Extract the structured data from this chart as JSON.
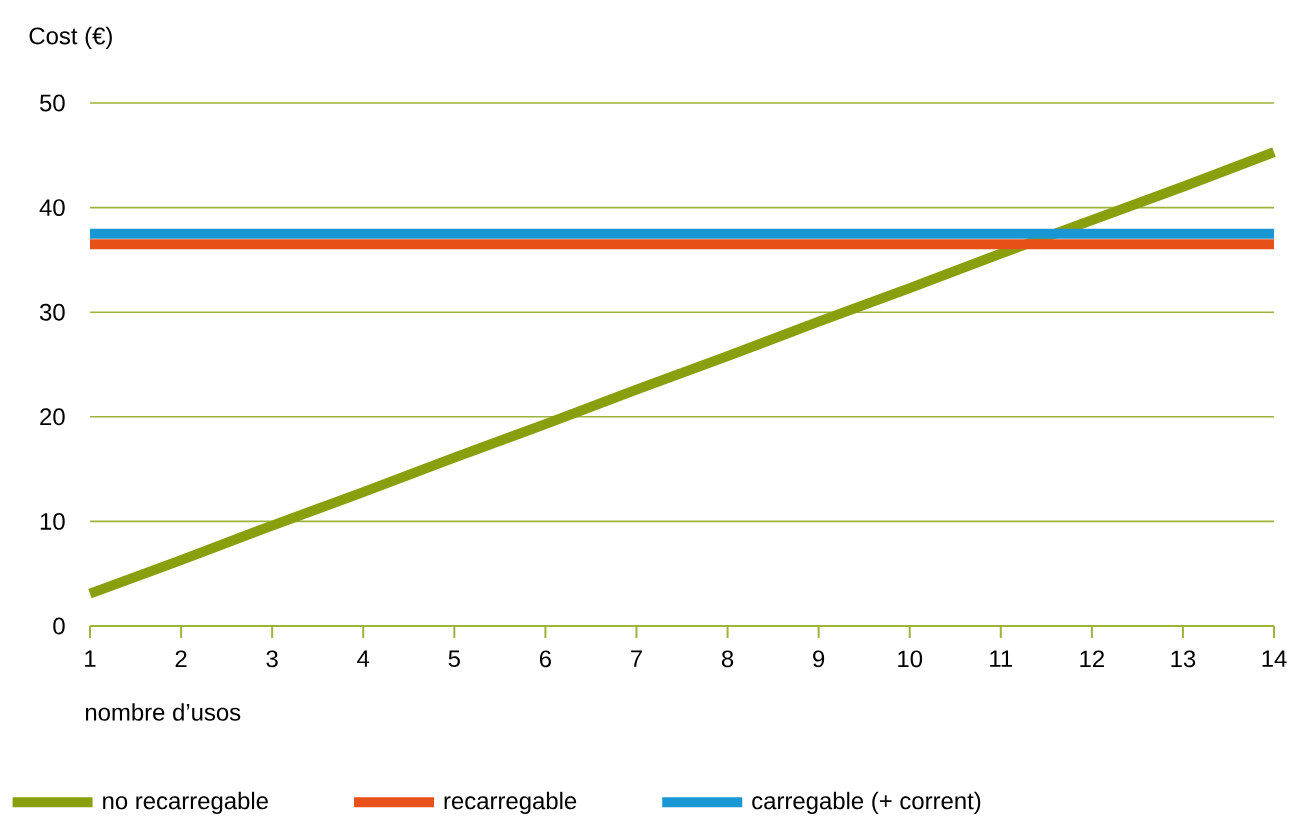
{
  "chart_data": {
    "type": "line",
    "xlabel": "nombre d’usos",
    "ylabel": "Cost (€)",
    "xlim": [
      1,
      14
    ],
    "xticks": [
      1,
      2,
      3,
      4,
      5,
      6,
      7,
      8,
      9,
      10,
      11,
      12,
      13,
      14
    ],
    "ylim": [
      0,
      50
    ],
    "yticks": [
      0,
      10,
      20,
      30,
      40,
      50
    ],
    "grid": "y",
    "legend": "bottom",
    "line_style": "solid",
    "marker": "none",
    "x": [
      1,
      2,
      3,
      4,
      5,
      6,
      7,
      8,
      9,
      10,
      11,
      12,
      13,
      14
    ],
    "series": [
      {
        "name": "no recarregable",
        "color": "#8a9f0e",
        "values": [
          3.1,
          6.3,
          9.6,
          12.8,
          16.1,
          19.3,
          22.6,
          25.8,
          29.1,
          32.3,
          35.6,
          38.8,
          42.0,
          45.3
        ]
      },
      {
        "name": "recarregable",
        "color": "#e8501a",
        "values": [
          36.5,
          36.5,
          36.5,
          36.5,
          36.5,
          36.5,
          36.5,
          36.5,
          36.5,
          36.5,
          36.5,
          36.5,
          36.5,
          36.5
        ]
      },
      {
        "name": "carregable (+ corrent)",
        "color": "#1a96d4",
        "values": [
          37.5,
          37.5,
          37.5,
          37.5,
          37.5,
          37.5,
          37.5,
          37.5,
          37.5,
          37.5,
          37.5,
          37.5,
          37.5,
          37.5
        ]
      }
    ]
  }
}
